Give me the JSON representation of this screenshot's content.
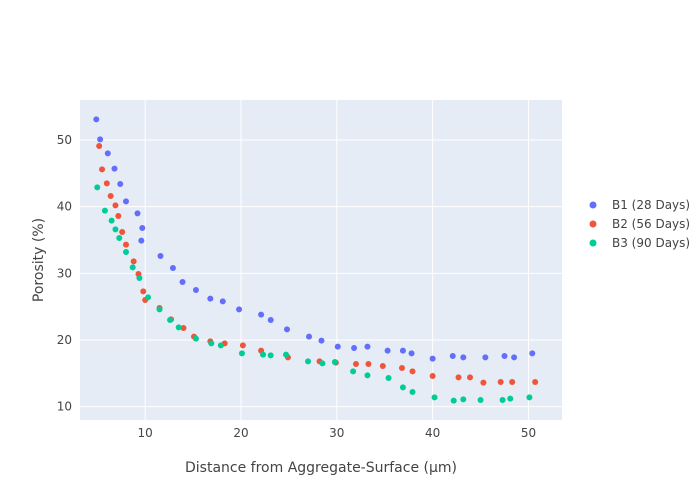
{
  "chart_data": {
    "type": "scatter",
    "xlabel": "Distance from Aggregate-Surface (μm)",
    "ylabel": "Porosity (%)",
    "xlim": [
      3.2,
      53.5
    ],
    "ylim": [
      8,
      56
    ],
    "x_ticks": [
      10,
      20,
      30,
      40,
      50
    ],
    "y_ticks": [
      10,
      20,
      30,
      40,
      50
    ],
    "grid": true,
    "legend_position": "right",
    "series": [
      {
        "name": "B1 (28 Days)",
        "color": "#636efa",
        "points": [
          [
            4.9,
            53.1
          ],
          [
            5.3,
            50.1
          ],
          [
            6.1,
            48.0
          ],
          [
            6.8,
            45.7
          ],
          [
            7.4,
            43.4
          ],
          [
            8.0,
            40.8
          ],
          [
            9.2,
            39.0
          ],
          [
            9.7,
            36.8
          ],
          [
            9.6,
            34.9
          ],
          [
            11.6,
            32.6
          ],
          [
            12.9,
            30.8
          ],
          [
            13.9,
            28.7
          ],
          [
            15.3,
            27.5
          ],
          [
            16.8,
            26.2
          ],
          [
            18.1,
            25.8
          ],
          [
            19.8,
            24.6
          ],
          [
            22.1,
            23.8
          ],
          [
            23.1,
            23.0
          ],
          [
            24.8,
            21.6
          ],
          [
            27.1,
            20.5
          ],
          [
            28.4,
            19.9
          ],
          [
            30.1,
            19.0
          ],
          [
            31.8,
            18.8
          ],
          [
            33.2,
            19.0
          ],
          [
            35.3,
            18.4
          ],
          [
            36.9,
            18.4
          ],
          [
            37.8,
            18.0
          ],
          [
            40.0,
            17.2
          ],
          [
            42.1,
            17.6
          ],
          [
            43.2,
            17.4
          ],
          [
            45.5,
            17.4
          ],
          [
            47.5,
            17.6
          ],
          [
            48.5,
            17.4
          ],
          [
            50.4,
            18.0
          ]
        ]
      },
      {
        "name": "B2 (56 Days)",
        "color": "#ef553b",
        "points": [
          [
            5.2,
            49.1
          ],
          [
            5.5,
            45.6
          ],
          [
            6.0,
            43.5
          ],
          [
            6.4,
            41.6
          ],
          [
            6.9,
            40.2
          ],
          [
            7.2,
            38.6
          ],
          [
            7.6,
            36.2
          ],
          [
            8.0,
            34.3
          ],
          [
            8.8,
            31.8
          ],
          [
            9.3,
            29.9
          ],
          [
            9.8,
            27.3
          ],
          [
            10.0,
            26.0
          ],
          [
            11.5,
            24.8
          ],
          [
            12.7,
            23.1
          ],
          [
            14.0,
            21.8
          ],
          [
            15.1,
            20.5
          ],
          [
            16.8,
            19.8
          ],
          [
            18.3,
            19.5
          ],
          [
            20.2,
            19.2
          ],
          [
            22.1,
            18.4
          ],
          [
            24.9,
            17.4
          ],
          [
            28.2,
            16.8
          ],
          [
            29.9,
            16.6
          ],
          [
            32.0,
            16.4
          ],
          [
            33.3,
            16.4
          ],
          [
            34.8,
            16.1
          ],
          [
            36.8,
            15.8
          ],
          [
            37.9,
            15.3
          ],
          [
            40.0,
            14.6
          ],
          [
            42.7,
            14.4
          ],
          [
            43.9,
            14.4
          ],
          [
            45.3,
            13.6
          ],
          [
            47.1,
            13.7
          ],
          [
            48.3,
            13.7
          ],
          [
            50.7,
            13.7
          ]
        ]
      },
      {
        "name": "B3 (90 Days)",
        "color": "#00cc96",
        "points": [
          [
            5.0,
            42.9
          ],
          [
            5.8,
            39.4
          ],
          [
            6.5,
            37.9
          ],
          [
            6.9,
            36.6
          ],
          [
            7.3,
            35.3
          ],
          [
            8.0,
            33.2
          ],
          [
            8.7,
            30.9
          ],
          [
            9.4,
            29.3
          ],
          [
            10.3,
            26.4
          ],
          [
            11.5,
            24.6
          ],
          [
            12.6,
            23.0
          ],
          [
            13.5,
            21.9
          ],
          [
            15.3,
            20.2
          ],
          [
            16.9,
            19.5
          ],
          [
            17.9,
            19.2
          ],
          [
            20.1,
            18.0
          ],
          [
            22.3,
            17.8
          ],
          [
            23.1,
            17.7
          ],
          [
            24.7,
            17.8
          ],
          [
            27.0,
            16.8
          ],
          [
            28.5,
            16.5
          ],
          [
            29.8,
            16.7
          ],
          [
            31.7,
            15.3
          ],
          [
            33.2,
            14.7
          ],
          [
            35.4,
            14.3
          ],
          [
            36.9,
            12.9
          ],
          [
            37.9,
            12.2
          ],
          [
            40.2,
            11.4
          ],
          [
            42.2,
            10.9
          ],
          [
            43.2,
            11.1
          ],
          [
            45.0,
            11.0
          ],
          [
            47.3,
            11.0
          ],
          [
            48.1,
            11.2
          ],
          [
            50.1,
            11.4
          ]
        ]
      }
    ]
  }
}
